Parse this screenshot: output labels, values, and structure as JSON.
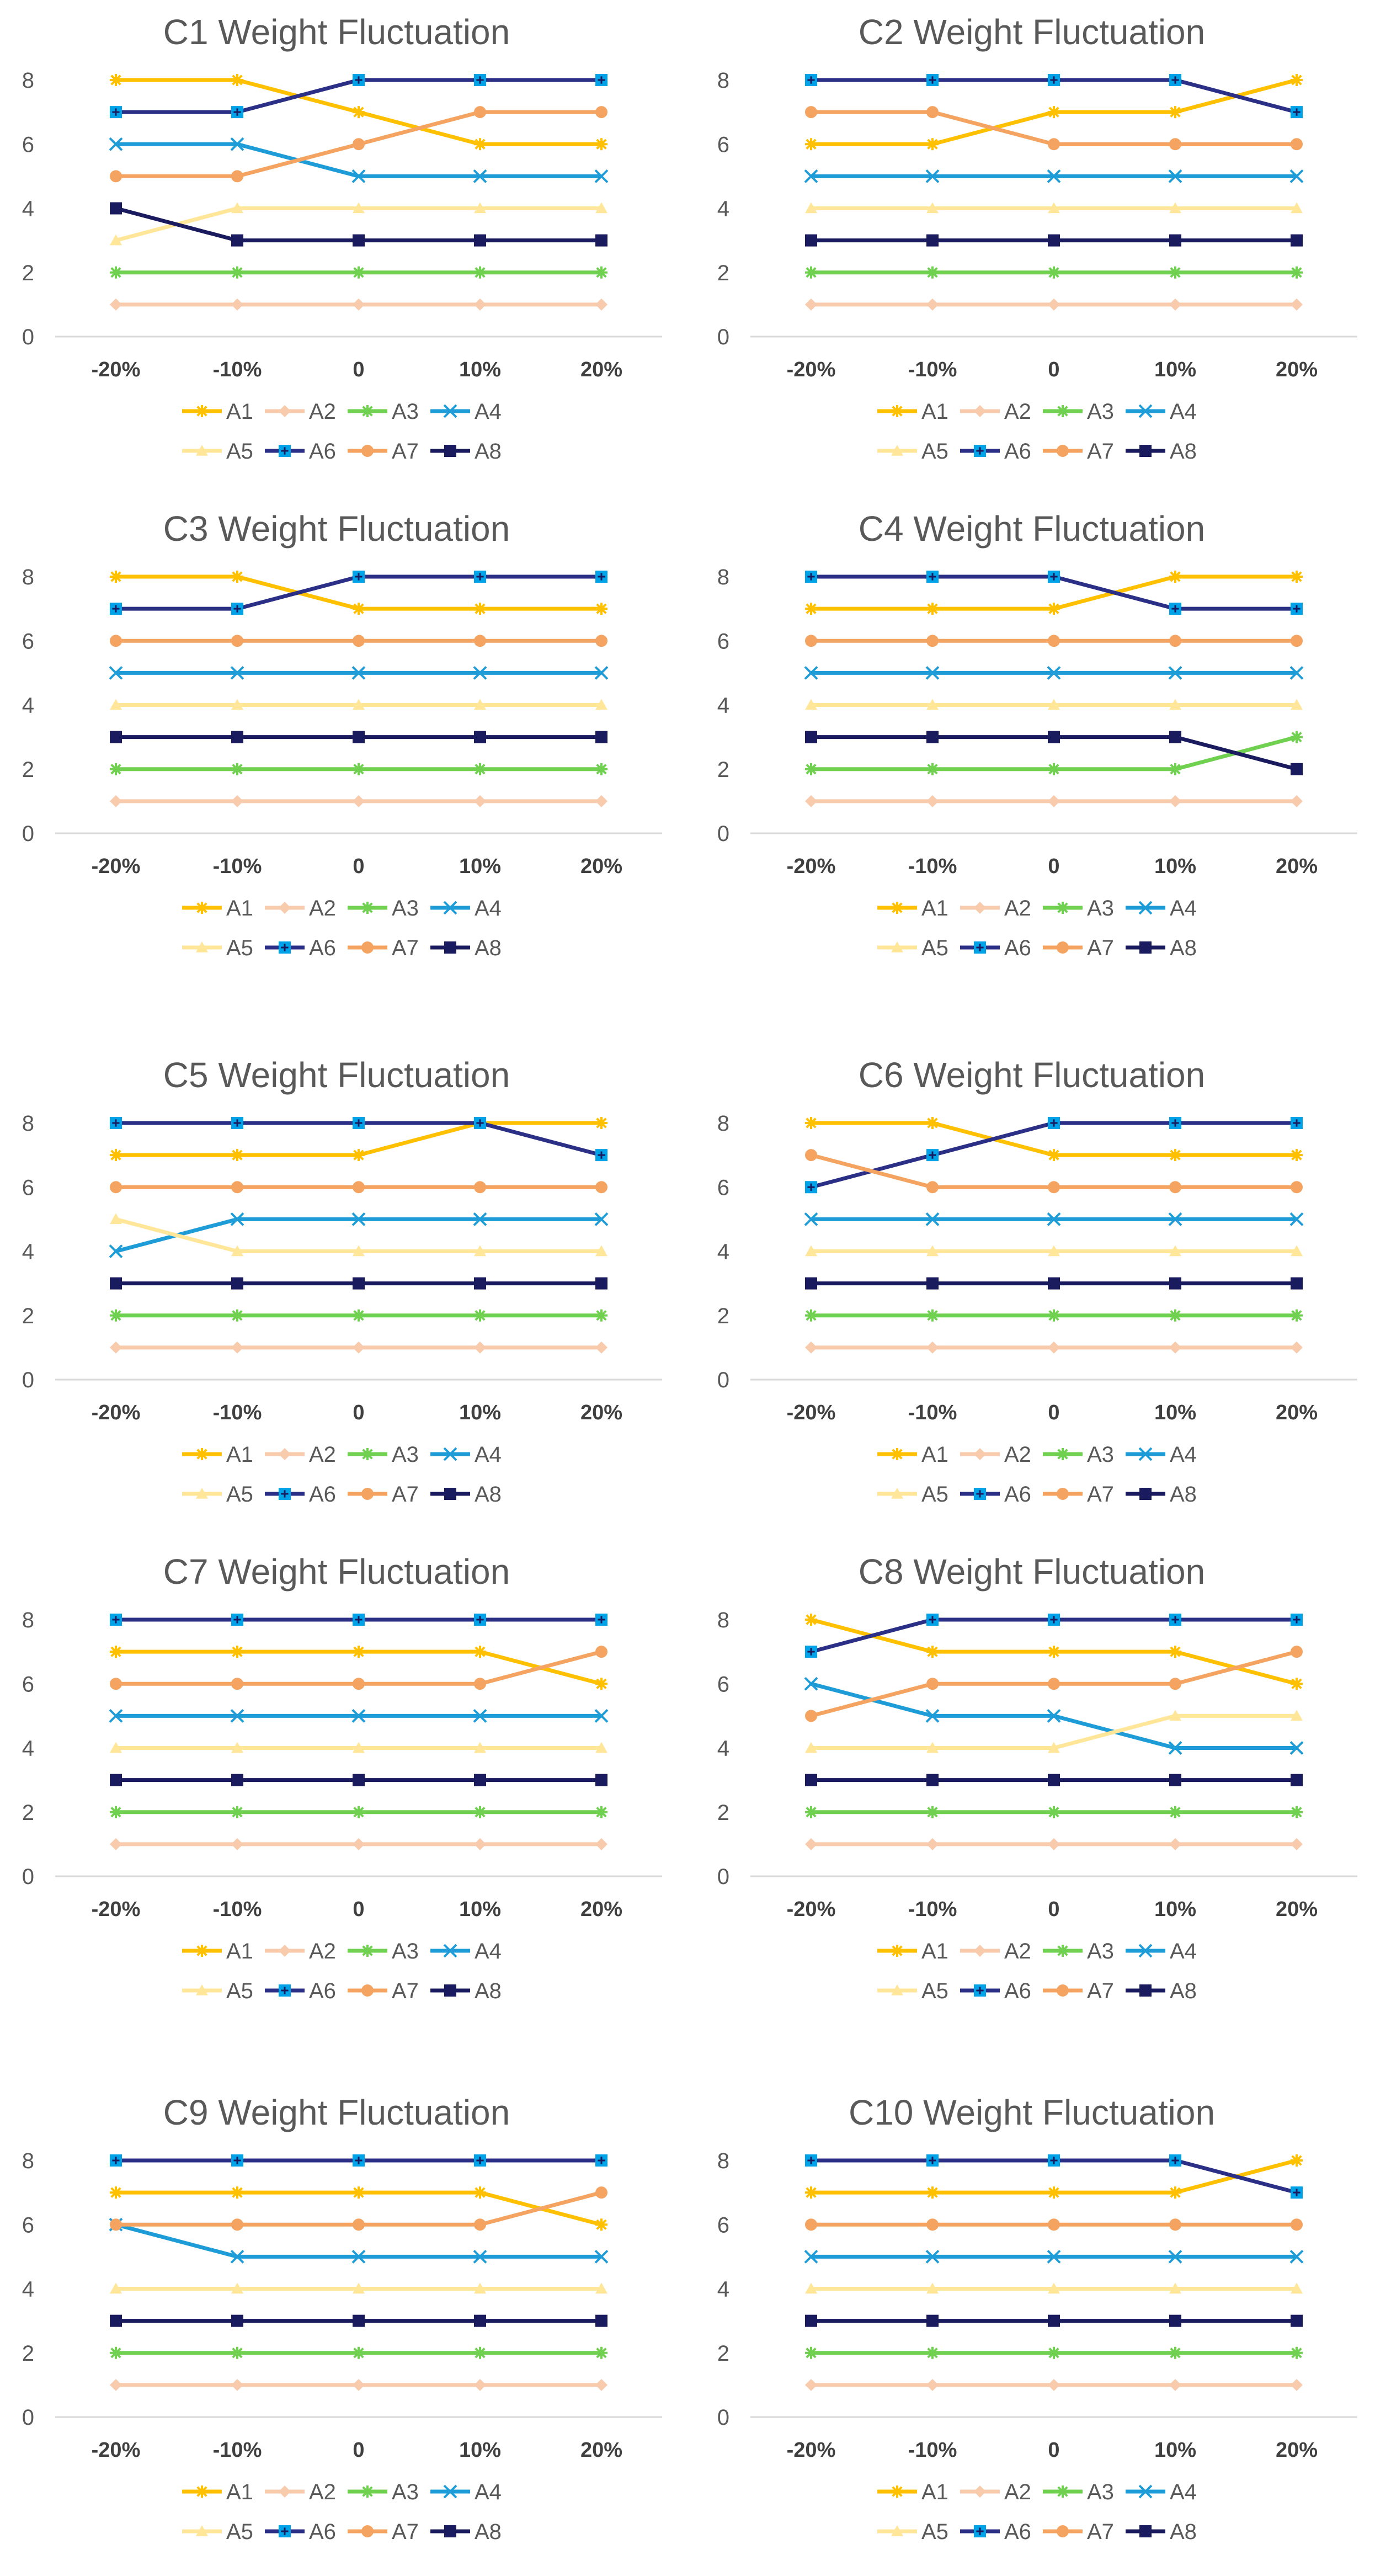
{
  "colors": {
    "A1": "#FFC000",
    "A2": "#F8CBAD",
    "A3": "#70D050",
    "A4": "#1E9CD7",
    "A5": "#FFE699",
    "A6": "#2B2F86",
    "A7": "#F4A460",
    "A8": "#1A1A5E",
    "grid": "#D9D9D9",
    "title": "#595959",
    "tick": "#595959"
  },
  "series_meta": [
    {
      "name": "A1",
      "marker": "star"
    },
    {
      "name": "A2",
      "marker": "diamond"
    },
    {
      "name": "A3",
      "marker": "star"
    },
    {
      "name": "A4",
      "marker": "x"
    },
    {
      "name": "A5",
      "marker": "triangle"
    },
    {
      "name": "A6",
      "marker": "plus-square"
    },
    {
      "name": "A7",
      "marker": "circle"
    },
    {
      "name": "A8",
      "marker": "square"
    }
  ],
  "chart_data": [
    {
      "type": "line",
      "title": "C1 Weight Fluctuation",
      "categories": [
        "-20%",
        "-10%",
        "0",
        "10%",
        "20%"
      ],
      "ylim": [
        0,
        8
      ],
      "yticks": [
        "0",
        "2",
        "4",
        "6",
        "8"
      ],
      "grid": false,
      "legend_position": "bottom",
      "series": [
        {
          "name": "A1",
          "values": [
            8,
            8,
            7,
            6,
            6
          ]
        },
        {
          "name": "A2",
          "values": [
            1,
            1,
            1,
            1,
            1
          ]
        },
        {
          "name": "A3",
          "values": [
            2,
            2,
            2,
            2,
            2
          ]
        },
        {
          "name": "A4",
          "values": [
            6,
            6,
            5,
            5,
            5
          ]
        },
        {
          "name": "A5",
          "values": [
            3,
            4,
            4,
            4,
            4
          ]
        },
        {
          "name": "A6",
          "values": [
            7,
            7,
            8,
            8,
            8
          ]
        },
        {
          "name": "A7",
          "values": [
            5,
            5,
            6,
            7,
            7
          ]
        },
        {
          "name": "A8",
          "values": [
            4,
            3,
            3,
            3,
            3
          ]
        }
      ]
    },
    {
      "type": "line",
      "title": "C2 Weight Fluctuation",
      "categories": [
        "-20%",
        "-10%",
        "0",
        "10%",
        "20%"
      ],
      "ylim": [
        0,
        8
      ],
      "yticks": [
        "0",
        "2",
        "4",
        "6",
        "8"
      ],
      "grid": false,
      "legend_position": "bottom",
      "series": [
        {
          "name": "A1",
          "values": [
            6,
            6,
            7,
            7,
            8
          ]
        },
        {
          "name": "A2",
          "values": [
            1,
            1,
            1,
            1,
            1
          ]
        },
        {
          "name": "A3",
          "values": [
            2,
            2,
            2,
            2,
            2
          ]
        },
        {
          "name": "A4",
          "values": [
            5,
            5,
            5,
            5,
            5
          ]
        },
        {
          "name": "A5",
          "values": [
            4,
            4,
            4,
            4,
            4
          ]
        },
        {
          "name": "A6",
          "values": [
            8,
            8,
            8,
            8,
            7
          ]
        },
        {
          "name": "A7",
          "values": [
            7,
            7,
            6,
            6,
            6
          ]
        },
        {
          "name": "A8",
          "values": [
            3,
            3,
            3,
            3,
            3
          ]
        }
      ]
    },
    {
      "type": "line",
      "title": "C3 Weight Fluctuation",
      "categories": [
        "-20%",
        "-10%",
        "0",
        "10%",
        "20%"
      ],
      "ylim": [
        0,
        8
      ],
      "yticks": [
        "0",
        "2",
        "4",
        "6",
        "8"
      ],
      "grid": false,
      "legend_position": "bottom",
      "series": [
        {
          "name": "A1",
          "values": [
            8,
            8,
            7,
            7,
            7
          ]
        },
        {
          "name": "A2",
          "values": [
            1,
            1,
            1,
            1,
            1
          ]
        },
        {
          "name": "A3",
          "values": [
            2,
            2,
            2,
            2,
            2
          ]
        },
        {
          "name": "A4",
          "values": [
            5,
            5,
            5,
            5,
            5
          ]
        },
        {
          "name": "A5",
          "values": [
            4,
            4,
            4,
            4,
            4
          ]
        },
        {
          "name": "A6",
          "values": [
            7,
            7,
            8,
            8,
            8
          ]
        },
        {
          "name": "A7",
          "values": [
            6,
            6,
            6,
            6,
            6
          ]
        },
        {
          "name": "A8",
          "values": [
            3,
            3,
            3,
            3,
            3
          ]
        }
      ]
    },
    {
      "type": "line",
      "title": "C4 Weight Fluctuation",
      "categories": [
        "-20%",
        "-10%",
        "0",
        "10%",
        "20%"
      ],
      "ylim": [
        0,
        8
      ],
      "yticks": [
        "0",
        "2",
        "4",
        "6",
        "8"
      ],
      "grid": false,
      "legend_position": "bottom",
      "series": [
        {
          "name": "A1",
          "values": [
            7,
            7,
            7,
            8,
            8
          ]
        },
        {
          "name": "A2",
          "values": [
            1,
            1,
            1,
            1,
            1
          ]
        },
        {
          "name": "A3",
          "values": [
            2,
            2,
            2,
            2,
            3
          ]
        },
        {
          "name": "A4",
          "values": [
            5,
            5,
            5,
            5,
            5
          ]
        },
        {
          "name": "A5",
          "values": [
            4,
            4,
            4,
            4,
            4
          ]
        },
        {
          "name": "A6",
          "values": [
            8,
            8,
            8,
            7,
            7
          ]
        },
        {
          "name": "A7",
          "values": [
            6,
            6,
            6,
            6,
            6
          ]
        },
        {
          "name": "A8",
          "values": [
            3,
            3,
            3,
            3,
            2
          ]
        }
      ]
    },
    {
      "type": "line",
      "title": "C5 Weight Fluctuation",
      "categories": [
        "-20%",
        "-10%",
        "0",
        "10%",
        "20%"
      ],
      "ylim": [
        0,
        8
      ],
      "yticks": [
        "0",
        "2",
        "4",
        "6",
        "8"
      ],
      "grid": false,
      "legend_position": "bottom",
      "series": [
        {
          "name": "A1",
          "values": [
            7,
            7,
            7,
            8,
            8
          ]
        },
        {
          "name": "A2",
          "values": [
            1,
            1,
            1,
            1,
            1
          ]
        },
        {
          "name": "A3",
          "values": [
            2,
            2,
            2,
            2,
            2
          ]
        },
        {
          "name": "A4",
          "values": [
            4,
            5,
            5,
            5,
            5
          ]
        },
        {
          "name": "A5",
          "values": [
            5,
            4,
            4,
            4,
            4
          ]
        },
        {
          "name": "A6",
          "values": [
            8,
            8,
            8,
            8,
            7
          ]
        },
        {
          "name": "A7",
          "values": [
            6,
            6,
            6,
            6,
            6
          ]
        },
        {
          "name": "A8",
          "values": [
            3,
            3,
            3,
            3,
            3
          ]
        }
      ]
    },
    {
      "type": "line",
      "title": "C6 Weight Fluctuation",
      "categories": [
        "-20%",
        "-10%",
        "0",
        "10%",
        "20%"
      ],
      "ylim": [
        0,
        8
      ],
      "yticks": [
        "0",
        "2",
        "4",
        "6",
        "8"
      ],
      "grid": false,
      "legend_position": "bottom",
      "series": [
        {
          "name": "A1",
          "values": [
            8,
            8,
            7,
            7,
            7
          ]
        },
        {
          "name": "A2",
          "values": [
            1,
            1,
            1,
            1,
            1
          ]
        },
        {
          "name": "A3",
          "values": [
            2,
            2,
            2,
            2,
            2
          ]
        },
        {
          "name": "A4",
          "values": [
            5,
            5,
            5,
            5,
            5
          ]
        },
        {
          "name": "A5",
          "values": [
            4,
            4,
            4,
            4,
            4
          ]
        },
        {
          "name": "A6",
          "values": [
            6,
            7,
            8,
            8,
            8
          ]
        },
        {
          "name": "A7",
          "values": [
            7,
            6,
            6,
            6,
            6
          ]
        },
        {
          "name": "A8",
          "values": [
            3,
            3,
            3,
            3,
            3
          ]
        }
      ]
    },
    {
      "type": "line",
      "title": "C7 Weight Fluctuation",
      "categories": [
        "-20%",
        "-10%",
        "0",
        "10%",
        "20%"
      ],
      "ylim": [
        0,
        8
      ],
      "yticks": [
        "0",
        "2",
        "4",
        "6",
        "8"
      ],
      "grid": false,
      "legend_position": "bottom",
      "series": [
        {
          "name": "A1",
          "values": [
            7,
            7,
            7,
            7,
            6
          ]
        },
        {
          "name": "A2",
          "values": [
            1,
            1,
            1,
            1,
            1
          ]
        },
        {
          "name": "A3",
          "values": [
            2,
            2,
            2,
            2,
            2
          ]
        },
        {
          "name": "A4",
          "values": [
            5,
            5,
            5,
            5,
            5
          ]
        },
        {
          "name": "A5",
          "values": [
            4,
            4,
            4,
            4,
            4
          ]
        },
        {
          "name": "A6",
          "values": [
            8,
            8,
            8,
            8,
            8
          ]
        },
        {
          "name": "A7",
          "values": [
            6,
            6,
            6,
            6,
            7
          ]
        },
        {
          "name": "A8",
          "values": [
            3,
            3,
            3,
            3,
            3
          ]
        }
      ]
    },
    {
      "type": "line",
      "title": "C8 Weight Fluctuation",
      "categories": [
        "-20%",
        "-10%",
        "0",
        "10%",
        "20%"
      ],
      "ylim": [
        0,
        8
      ],
      "yticks": [
        "0",
        "2",
        "4",
        "6",
        "8"
      ],
      "grid": false,
      "legend_position": "bottom",
      "series": [
        {
          "name": "A1",
          "values": [
            8,
            7,
            7,
            7,
            6
          ]
        },
        {
          "name": "A2",
          "values": [
            1,
            1,
            1,
            1,
            1
          ]
        },
        {
          "name": "A3",
          "values": [
            2,
            2,
            2,
            2,
            2
          ]
        },
        {
          "name": "A4",
          "values": [
            6,
            5,
            5,
            4,
            4
          ]
        },
        {
          "name": "A5",
          "values": [
            4,
            4,
            4,
            5,
            5
          ]
        },
        {
          "name": "A6",
          "values": [
            7,
            8,
            8,
            8,
            8
          ]
        },
        {
          "name": "A7",
          "values": [
            5,
            6,
            6,
            6,
            7
          ]
        },
        {
          "name": "A8",
          "values": [
            3,
            3,
            3,
            3,
            3
          ]
        }
      ]
    },
    {
      "type": "line",
      "title": "C9 Weight Fluctuation",
      "categories": [
        "-20%",
        "-10%",
        "0",
        "10%",
        "20%"
      ],
      "ylim": [
        0,
        8
      ],
      "yticks": [
        "0",
        "2",
        "4",
        "6",
        "8"
      ],
      "grid": false,
      "legend_position": "bottom",
      "series": [
        {
          "name": "A1",
          "values": [
            7,
            7,
            7,
            7,
            6
          ]
        },
        {
          "name": "A2",
          "values": [
            1,
            1,
            1,
            1,
            1
          ]
        },
        {
          "name": "A3",
          "values": [
            2,
            2,
            2,
            2,
            2
          ]
        },
        {
          "name": "A4",
          "values": [
            6,
            5,
            5,
            5,
            5
          ]
        },
        {
          "name": "A5",
          "values": [
            4,
            4,
            4,
            4,
            4
          ]
        },
        {
          "name": "A6",
          "values": [
            8,
            8,
            8,
            8,
            8
          ]
        },
        {
          "name": "A7",
          "values": [
            6,
            6,
            6,
            6,
            7
          ]
        },
        {
          "name": "A8",
          "values": [
            3,
            3,
            3,
            3,
            3
          ]
        }
      ]
    },
    {
      "type": "line",
      "title": "C10 Weight Fluctuation",
      "categories": [
        "-20%",
        "-10%",
        "0",
        "10%",
        "20%"
      ],
      "ylim": [
        0,
        8
      ],
      "yticks": [
        "0",
        "2",
        "4",
        "6",
        "8"
      ],
      "grid": false,
      "legend_position": "bottom",
      "series": [
        {
          "name": "A1",
          "values": [
            7,
            7,
            7,
            7,
            8
          ]
        },
        {
          "name": "A2",
          "values": [
            1,
            1,
            1,
            1,
            1
          ]
        },
        {
          "name": "A3",
          "values": [
            2,
            2,
            2,
            2,
            2
          ]
        },
        {
          "name": "A4",
          "values": [
            5,
            5,
            5,
            5,
            5
          ]
        },
        {
          "name": "A5",
          "values": [
            4,
            4,
            4,
            4,
            4
          ]
        },
        {
          "name": "A6",
          "values": [
            8,
            8,
            8,
            8,
            7
          ]
        },
        {
          "name": "A7",
          "values": [
            6,
            6,
            6,
            6,
            6
          ]
        },
        {
          "name": "A8",
          "values": [
            3,
            3,
            3,
            3,
            3
          ]
        }
      ]
    }
  ]
}
